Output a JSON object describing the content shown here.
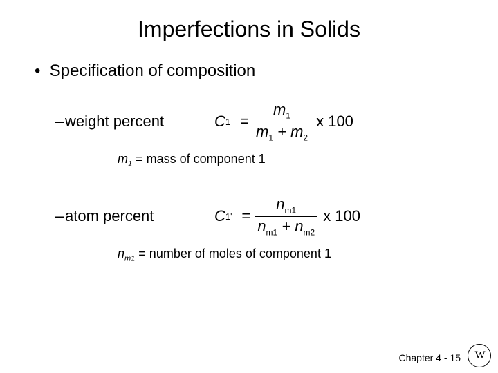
{
  "title": "Imperfections in Solids",
  "bullet": "Specification of composition",
  "weight": {
    "label": "weight percent",
    "lhs_sym": "C",
    "lhs_sub": "1",
    "num_html": "m<sub>1</sub>",
    "den_html": "m<sub>1</sub> + m<sub>2</sub>",
    "tail": "x 100",
    "note_html": "<span class='ivar'>m</span><sub>1</sub> = mass of component 1"
  },
  "atom": {
    "label": "atom percent",
    "lhs_sym": "C",
    "lhs_sub": "1",
    "lhs_sup": "'",
    "num_html": "n<sub>m1</sub>",
    "den_html": "n<sub>m1</sub> + n<sub>m2</sub>",
    "tail": "x 100",
    "note_html": "<span class='ivar'>n<sub>m1</sub></span> = number of moles of component 1"
  },
  "footer": {
    "chapter": "Chapter 4 -",
    "page": "15"
  },
  "logo_text": "W"
}
